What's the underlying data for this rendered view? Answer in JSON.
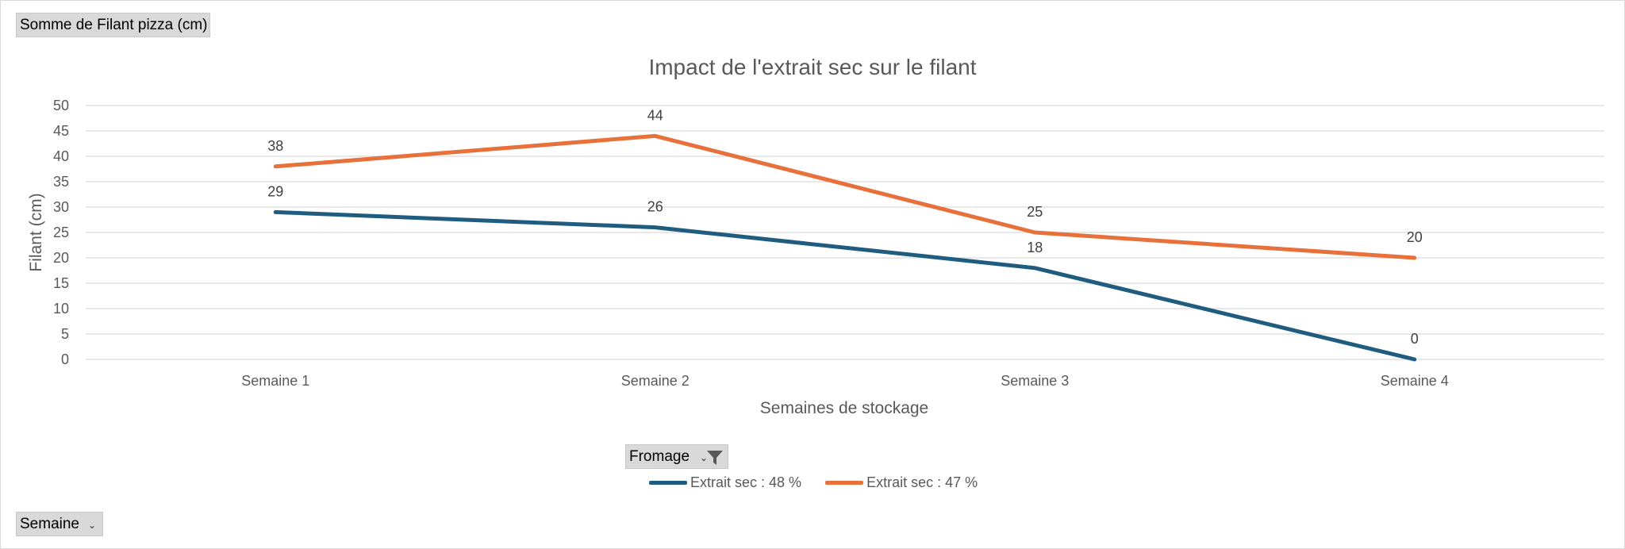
{
  "pivot": {
    "value_field": "Somme de Filant pizza (cm)",
    "axis_field": "Semaine",
    "legend_field": "Fromage"
  },
  "icons": {
    "dropdown": "chevron-down-icon",
    "filter": "filter-icon"
  },
  "chart_data": {
    "type": "line",
    "title": "Impact de l'extrait sec sur le filant",
    "xlabel": "Semaines de stockage",
    "ylabel": "Filant (cm)",
    "categories": [
      "Semaine 1",
      "Semaine 2",
      "Semaine 3",
      "Semaine 4"
    ],
    "ylim": [
      0,
      50
    ],
    "yticks": [
      0,
      5,
      10,
      15,
      20,
      25,
      30,
      35,
      40,
      45,
      50
    ],
    "grid": true,
    "legend_position": "bottom",
    "series": [
      {
        "name": "Extrait sec : 48 %",
        "values": [
          29,
          26,
          18,
          0
        ],
        "color": "#1f5c80"
      },
      {
        "name": "Extrait sec : 47 %",
        "values": [
          38,
          44,
          25,
          20
        ],
        "color": "#e8703a"
      }
    ]
  }
}
